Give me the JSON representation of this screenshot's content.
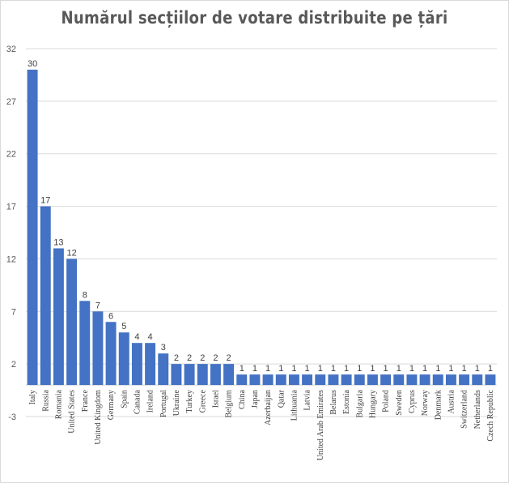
{
  "chart_data": {
    "type": "bar",
    "title": "Numărul secțiilor de votare  distribuite pe țări",
    "xlabel": "",
    "ylabel": "",
    "ylim": [
      -3,
      32
    ],
    "yticks": [
      -3,
      2,
      7,
      12,
      17,
      22,
      27,
      32
    ],
    "grid": true,
    "bar_color": "#4472C4",
    "categories": [
      "Italy",
      "Russia",
      "Romania",
      "United States",
      "France",
      "United Kingdom",
      "Germany",
      "Spain",
      "Canada",
      "Ireland",
      "Portugal",
      "Ukraine",
      "Turkey",
      "Greece",
      "Israel",
      "Belgium",
      "China",
      "Japan",
      "Azerbaijan",
      "Qatar",
      "Lithuania",
      "Latvia",
      "United Arab Emirates",
      "Belarus",
      "Estonia",
      "Bulgaria",
      "Hungary",
      "Poland",
      "Sweden",
      "Cyprus",
      "Norway",
      "Denmark",
      "Austria",
      "Switzerland",
      "Netherlands",
      "Czech Republic"
    ],
    "values": [
      30,
      17,
      13,
      12,
      8,
      7,
      6,
      5,
      4,
      4,
      3,
      2,
      2,
      2,
      2,
      2,
      1,
      1,
      1,
      1,
      1,
      1,
      1,
      1,
      1,
      1,
      1,
      1,
      1,
      1,
      1,
      1,
      1,
      1,
      1,
      1
    ]
  }
}
